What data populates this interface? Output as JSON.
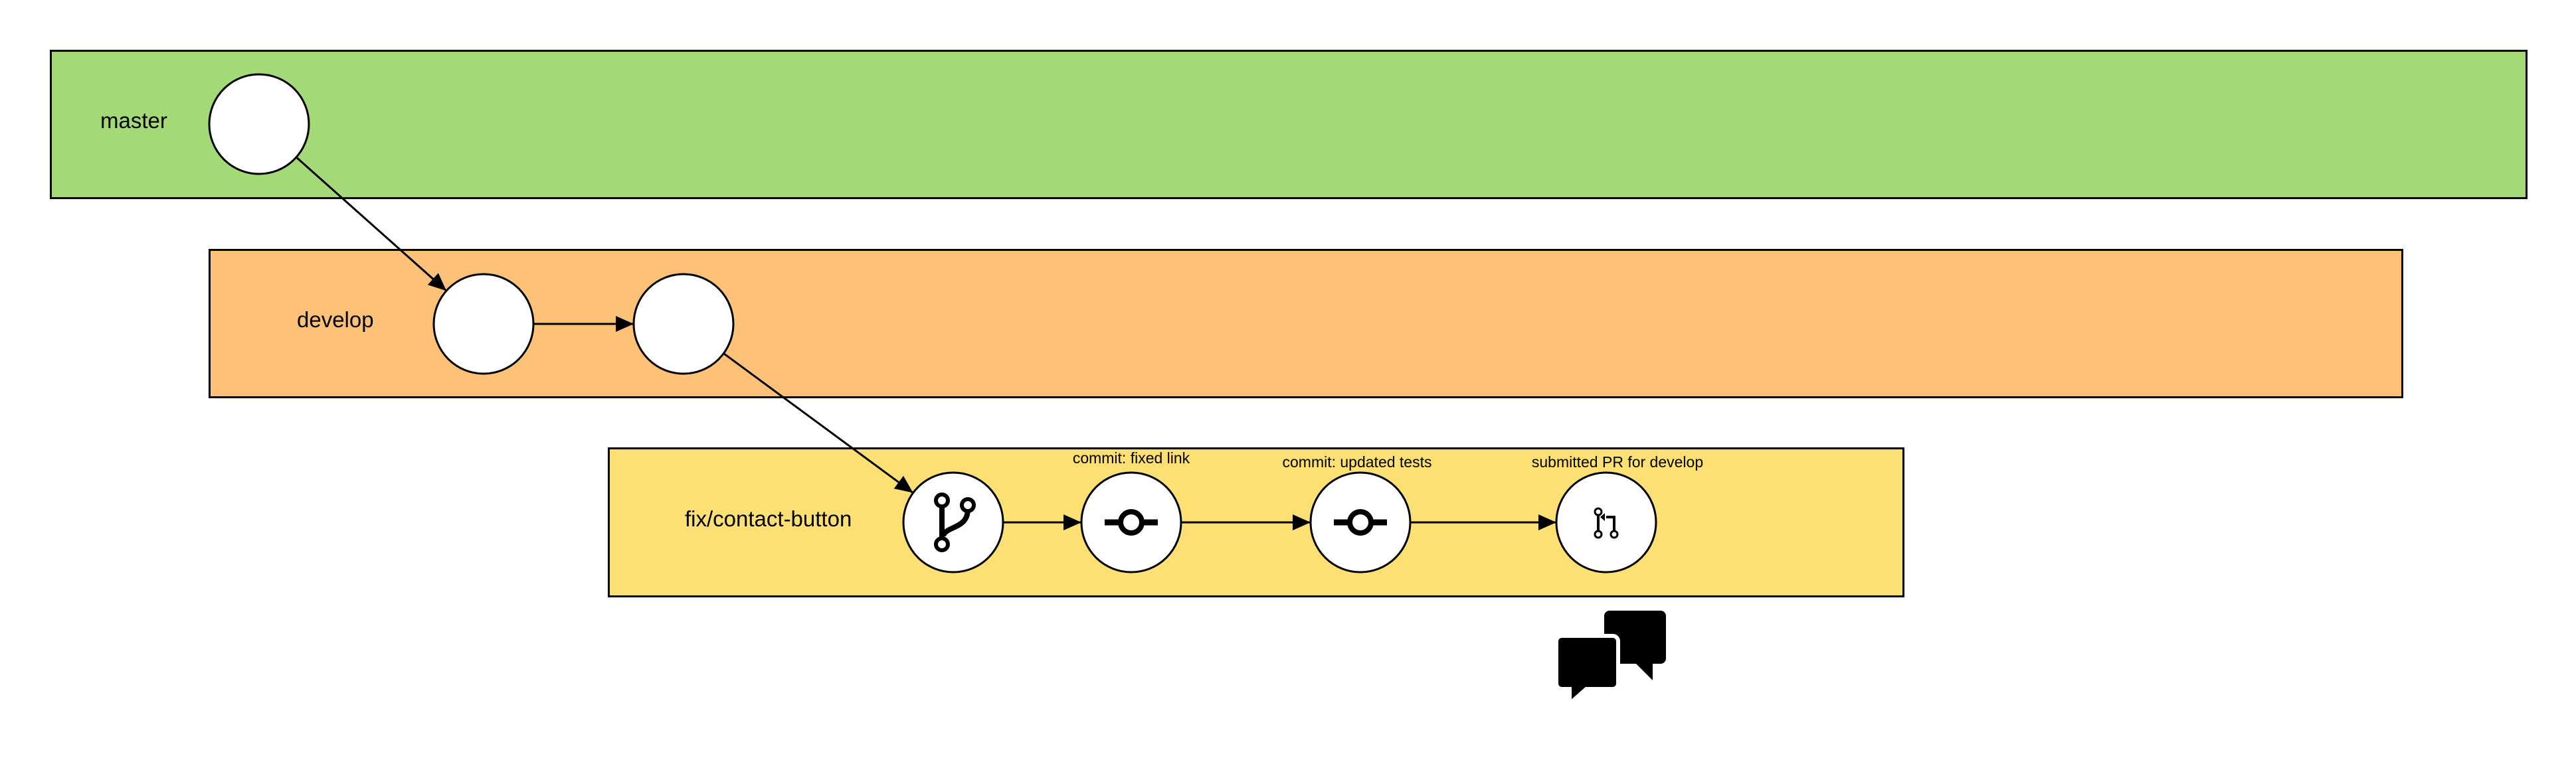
{
  "colors": {
    "master": "#a3d977",
    "develop": "#fdc277",
    "fix": "#fde074",
    "line": "#000000",
    "node_fill": "#ffffff"
  },
  "lanes": {
    "master": {
      "label": "master"
    },
    "develop": {
      "label": "develop"
    },
    "fix": {
      "label": "fix/contact-button"
    }
  },
  "nodes": [
    {
      "id": "m1",
      "lane": "master",
      "icon": "none"
    },
    {
      "id": "d1",
      "lane": "develop",
      "icon": "none"
    },
    {
      "id": "d2",
      "lane": "develop",
      "icon": "none"
    },
    {
      "id": "f1",
      "lane": "fix",
      "icon": "git-branch-icon"
    },
    {
      "id": "f2",
      "lane": "fix",
      "icon": "git-commit-icon",
      "label": "commit: fixed link"
    },
    {
      "id": "f3",
      "lane": "fix",
      "icon": "git-commit-icon",
      "label": "commit: updated tests"
    },
    {
      "id": "f4",
      "lane": "fix",
      "icon": "git-pull-request-icon",
      "label": "submitted PR for develop"
    }
  ],
  "edges": [
    [
      "m1",
      "d1"
    ],
    [
      "d1",
      "d2"
    ],
    [
      "d2",
      "f1"
    ],
    [
      "f1",
      "f2"
    ],
    [
      "f2",
      "f3"
    ],
    [
      "f3",
      "f4"
    ]
  ],
  "extra_icons": [
    "comments-icon"
  ]
}
